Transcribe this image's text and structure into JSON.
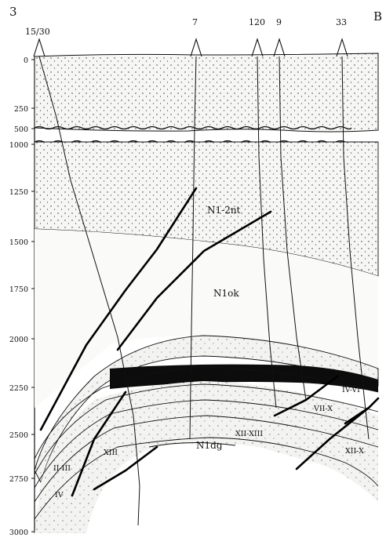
{
  "corner_labels": {
    "left": "3",
    "right": "B"
  },
  "depth_ticks": [
    "0",
    "250",
    "500",
    "1000",
    "1250",
    "1500",
    "1750",
    "2000",
    "2250",
    "2500",
    "2750",
    "3000"
  ],
  "wells": [
    "15/30",
    "7",
    "120",
    "9",
    "33"
  ],
  "unit_labels": {
    "upper": "N1-2nt",
    "middle": "N1ok",
    "lower": "N1dg"
  },
  "zone_labels": [
    "II-III",
    "XIII",
    "IV",
    "XII-XIII",
    "VII-X",
    "IV-VI",
    "XII-X"
  ]
}
